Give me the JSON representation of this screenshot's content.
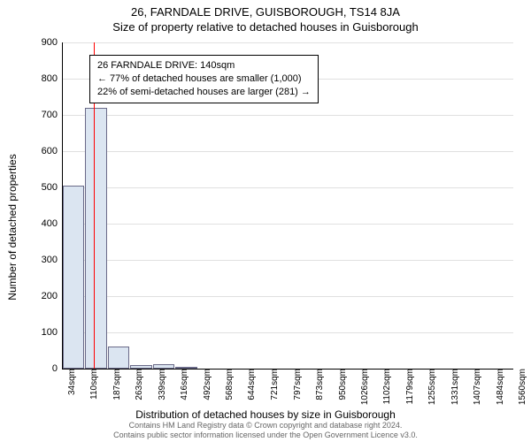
{
  "supertitle": "26, FARNDALE DRIVE, GUISBOROUGH, TS14 8JA",
  "title": "Size of property relative to detached houses in Guisborough",
  "y_axis_label": "Number of detached properties",
  "x_axis_label": "Distribution of detached houses by size in Guisborough",
  "chart": {
    "type": "histogram",
    "ylim": [
      0,
      900
    ],
    "ytick_step": 100,
    "xlim": [
      34,
      1560
    ],
    "xtick_labels": [
      "34sqm",
      "110sqm",
      "187sqm",
      "263sqm",
      "339sqm",
      "416sqm",
      "492sqm",
      "568sqm",
      "644sqm",
      "721sqm",
      "797sqm",
      "873sqm",
      "950sqm",
      "1026sqm",
      "1102sqm",
      "1179sqm",
      "1255sqm",
      "1331sqm",
      "1407sqm",
      "1484sqm",
      "1560sqm"
    ],
    "xtick_positions": [
      34,
      110,
      187,
      263,
      339,
      416,
      492,
      568,
      644,
      721,
      797,
      873,
      950,
      1026,
      1102,
      1179,
      1255,
      1331,
      1407,
      1484,
      1560
    ],
    "bars": [
      {
        "x0": 34,
        "x1": 110,
        "value": 505
      },
      {
        "x0": 110,
        "x1": 187,
        "value": 720
      },
      {
        "x0": 187,
        "x1": 263,
        "value": 60
      },
      {
        "x0": 263,
        "x1": 339,
        "value": 10
      },
      {
        "x0": 339,
        "x1": 416,
        "value": 12
      },
      {
        "x0": 416,
        "x1": 492,
        "value": 3
      }
    ],
    "bar_fill": "#dbe5f1",
    "bar_stroke": "#6a6a88",
    "highlight_x": 140,
    "highlight_color": "#ff0000",
    "grid_color": "#e0e0e0",
    "background_color": "#ffffff",
    "ytick_fontsize": 11,
    "xtick_fontsize": 10,
    "label_fontsize": 12
  },
  "annotation": {
    "line1": "26 FARNDALE DRIVE: 140sqm",
    "line2": "← 77% of detached houses are smaller (1,000)",
    "line3": "22% of semi-detached houses are larger (281) →",
    "border_color": "#000000",
    "bg_color": "#ffffff",
    "fontsize": 11
  },
  "footer_line1": "Contains HM Land Registry data © Crown copyright and database right 2024.",
  "footer_line2": "Contains public sector information licensed under the Open Government Licence v3.0."
}
